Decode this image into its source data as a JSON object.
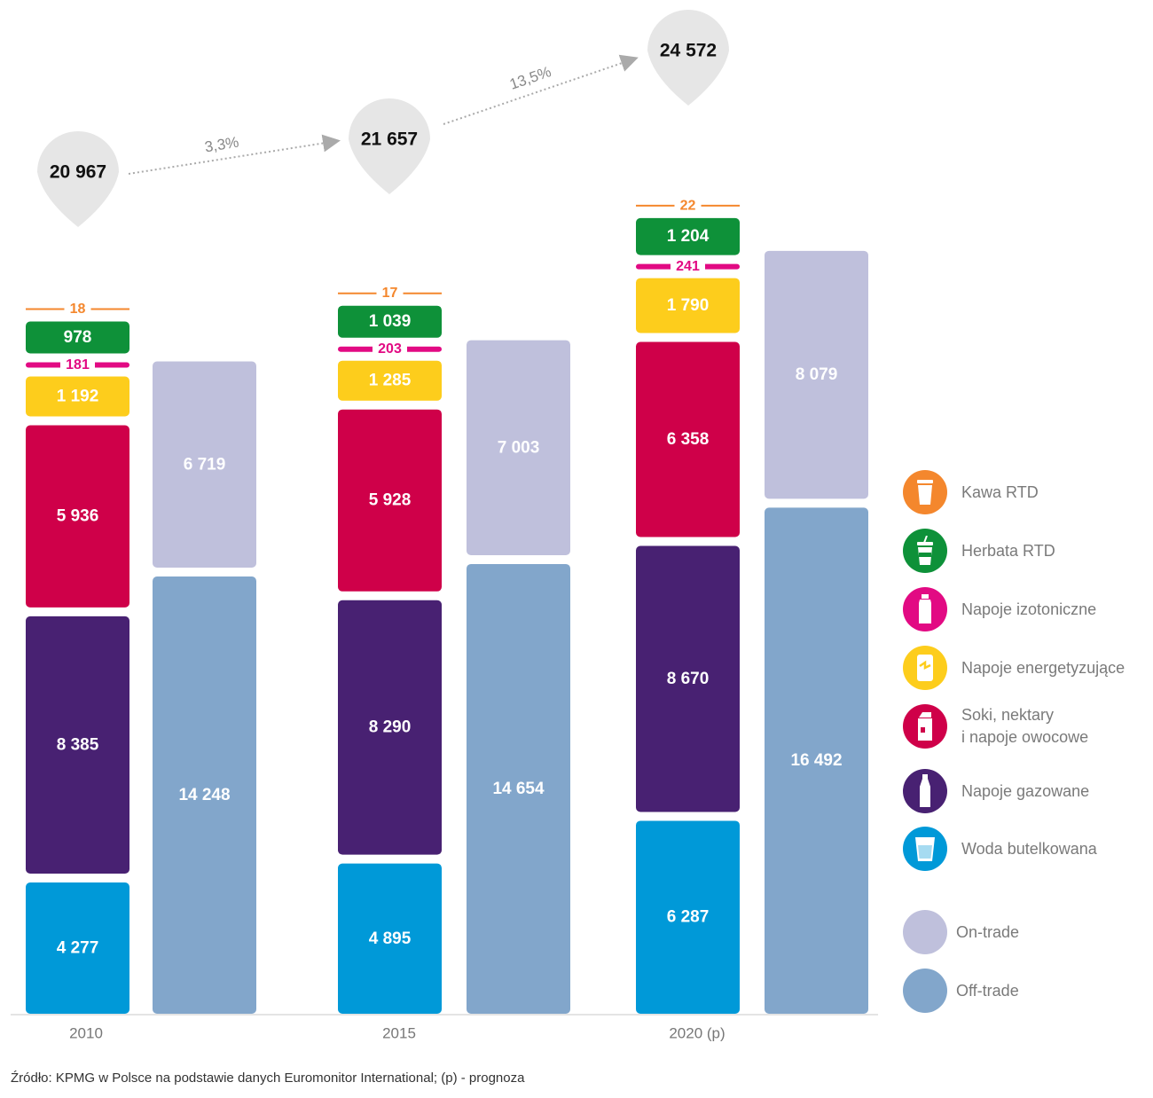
{
  "chart_data": {
    "type": "bar",
    "stacked": true,
    "categories": [
      "2010",
      "2015",
      "2020 (p)"
    ],
    "category_series": [
      {
        "name": "Woda butelkowana",
        "color": "#0099d8",
        "values": [
          4277,
          4895,
          6287
        ],
        "labels": [
          "4 277",
          "4 895",
          "6 287"
        ]
      },
      {
        "name": "Napoje gazowane",
        "color": "#482172",
        "values": [
          8385,
          8290,
          8670
        ],
        "labels": [
          "8 385",
          "8 290",
          "8 670"
        ]
      },
      {
        "name": "Soki, nektary\ni napoje owocowe",
        "color": "#cf0049",
        "values": [
          5936,
          5928,
          6358
        ],
        "labels": [
          "5 936",
          "5 928",
          "6 358"
        ]
      },
      {
        "name": "Napoje energetyzujące",
        "color": "#fdcd1c",
        "values": [
          1192,
          1285,
          1790
        ],
        "labels": [
          "1 192",
          "1 285",
          "1 790"
        ]
      },
      {
        "name": "Napoje izotoniczne",
        "color": "#e20a83",
        "values": [
          181,
          203,
          241
        ],
        "labels": [
          "181",
          "203",
          "241"
        ]
      },
      {
        "name": "Herbata RTD",
        "color": "#0e9139",
        "values": [
          978,
          1039,
          1204
        ],
        "labels": [
          "978",
          "1 039",
          "1 204"
        ]
      },
      {
        "name": "Kawa RTD",
        "color": "#f4872d",
        "values": [
          18,
          17,
          22
        ],
        "labels": [
          "18",
          "17",
          "22"
        ]
      }
    ],
    "channel_series": [
      {
        "name": "Off-trade",
        "color": "#82a6cb",
        "values": [
          14248,
          14654,
          16492
        ],
        "labels": [
          "14 248",
          "14 654",
          "16 492"
        ]
      },
      {
        "name": "On-trade",
        "color": "#bfc0dc",
        "values": [
          6719,
          7003,
          8079
        ],
        "labels": [
          "6 719",
          "7 003",
          "8 079"
        ]
      }
    ],
    "totals": [
      20967,
      21657,
      24572
    ],
    "total_labels": [
      "20 967",
      "21 657",
      "24 572"
    ],
    "growth_labels": [
      "3,3%",
      "13,5%"
    ]
  },
  "legend": [
    {
      "label": "Kawa RTD",
      "color": "#f4872d",
      "icon": "coffee-cup-icon"
    },
    {
      "label": "Herbata RTD",
      "color": "#0e9139",
      "icon": "tea-cup-icon"
    },
    {
      "label": "Napoje izotoniczne",
      "color": "#e20a83",
      "icon": "isotonic-bottle-icon"
    },
    {
      "label": "Napoje energetyzujące",
      "color": "#fdcd1c",
      "icon": "energy-can-icon"
    },
    {
      "label": "Soki, nektary\ni napoje owocowe",
      "color": "#cf0049",
      "icon": "juice-carton-icon"
    },
    {
      "label": "Napoje gazowane",
      "color": "#482172",
      "icon": "soda-bottle-icon"
    },
    {
      "label": "Woda butelkowana",
      "color": "#0099d8",
      "icon": "water-glass-icon"
    },
    {
      "label": "On-trade",
      "color": "#bfc0dc",
      "icon": ""
    },
    {
      "label": "Off-trade",
      "color": "#82a6cb",
      "icon": ""
    }
  ],
  "source_note": "Źródło: KPMG w Polsce na podstawie danych Euromonitor International; (p) - prognoza"
}
